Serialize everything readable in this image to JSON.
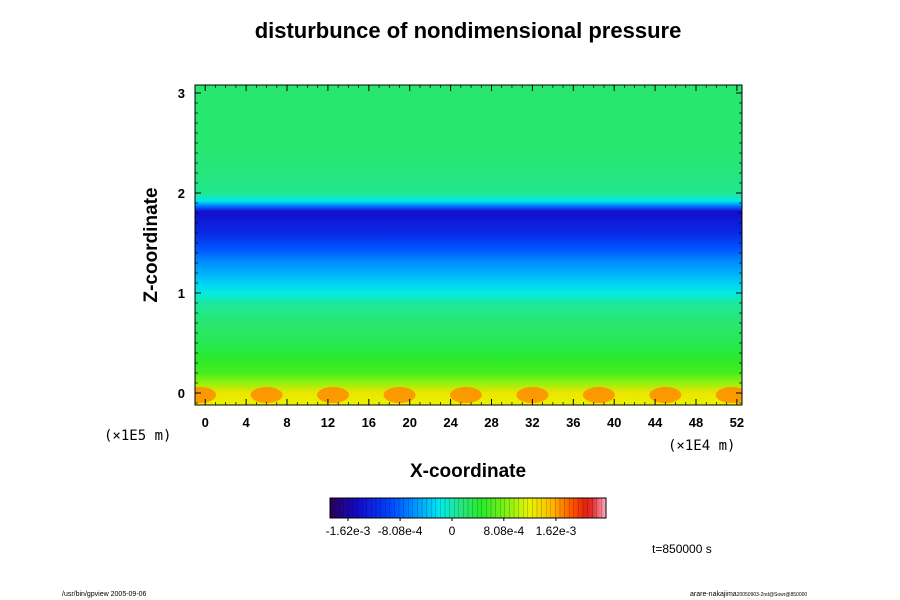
{
  "chart_data": {
    "type": "heatmap",
    "title": "disturbunce of nondimensional pressure",
    "xlabel": "X-coordinate",
    "ylabel": "Z-coordinate",
    "x_unit": "(×1E4 m)",
    "y_unit": "(×1E5 m)",
    "xlim": [
      -1,
      52.5
    ],
    "ylim": [
      -0.12,
      3.08
    ],
    "x_ticks": [
      "0",
      "4",
      "8",
      "12",
      "16",
      "20",
      "24",
      "28",
      "32",
      "36",
      "40",
      "44",
      "48",
      "52"
    ],
    "x_tick_values": [
      0,
      4,
      8,
      12,
      16,
      20,
      24,
      28,
      32,
      36,
      40,
      44,
      48,
      52
    ],
    "y_ticks": [
      "0",
      "1",
      "2",
      "3"
    ],
    "y_tick_values": [
      0,
      1,
      2,
      3
    ],
    "profile_z": [
      -0.12,
      0.0,
      0.1,
      0.2,
      0.35,
      0.5,
      0.7,
      0.9,
      1.0,
      1.1,
      1.2,
      1.3,
      1.45,
      1.6,
      1.7,
      1.78,
      1.82,
      1.86,
      1.92,
      2.0,
      2.2,
      2.5,
      2.8,
      3.08
    ],
    "profile_value": [
      0.0012,
      0.0013,
      0.0009,
      0.0006,
      0.00045,
      0.0003,
      0.0002,
      5e-05,
      -0.00015,
      -0.0003,
      -0.00045,
      -0.0006,
      -0.0009,
      -0.0012,
      -0.0013,
      -0.0014,
      -0.0014,
      -0.0008,
      -0.0002,
      0.0001,
      0.00015,
      0.0002,
      0.0002,
      0.0002
    ],
    "colorbar": {
      "min": -0.0019,
      "max": 0.0024,
      "tick_labels": [
        "-1.62e-3",
        "-8.08e-4",
        "0",
        "8.08e-4",
        "1.62e-3"
      ],
      "tick_values": [
        -0.00162,
        -0.000808,
        0,
        0.000808,
        0.00162
      ]
    }
  },
  "annotations": {
    "time": "t=850000 s",
    "footer_left": "/usr/bin/gpview 2005-09-06",
    "footer_right_name": "arare-nakajima",
    "footer_right_small": "20050903-2nd@Sowr@850000"
  }
}
